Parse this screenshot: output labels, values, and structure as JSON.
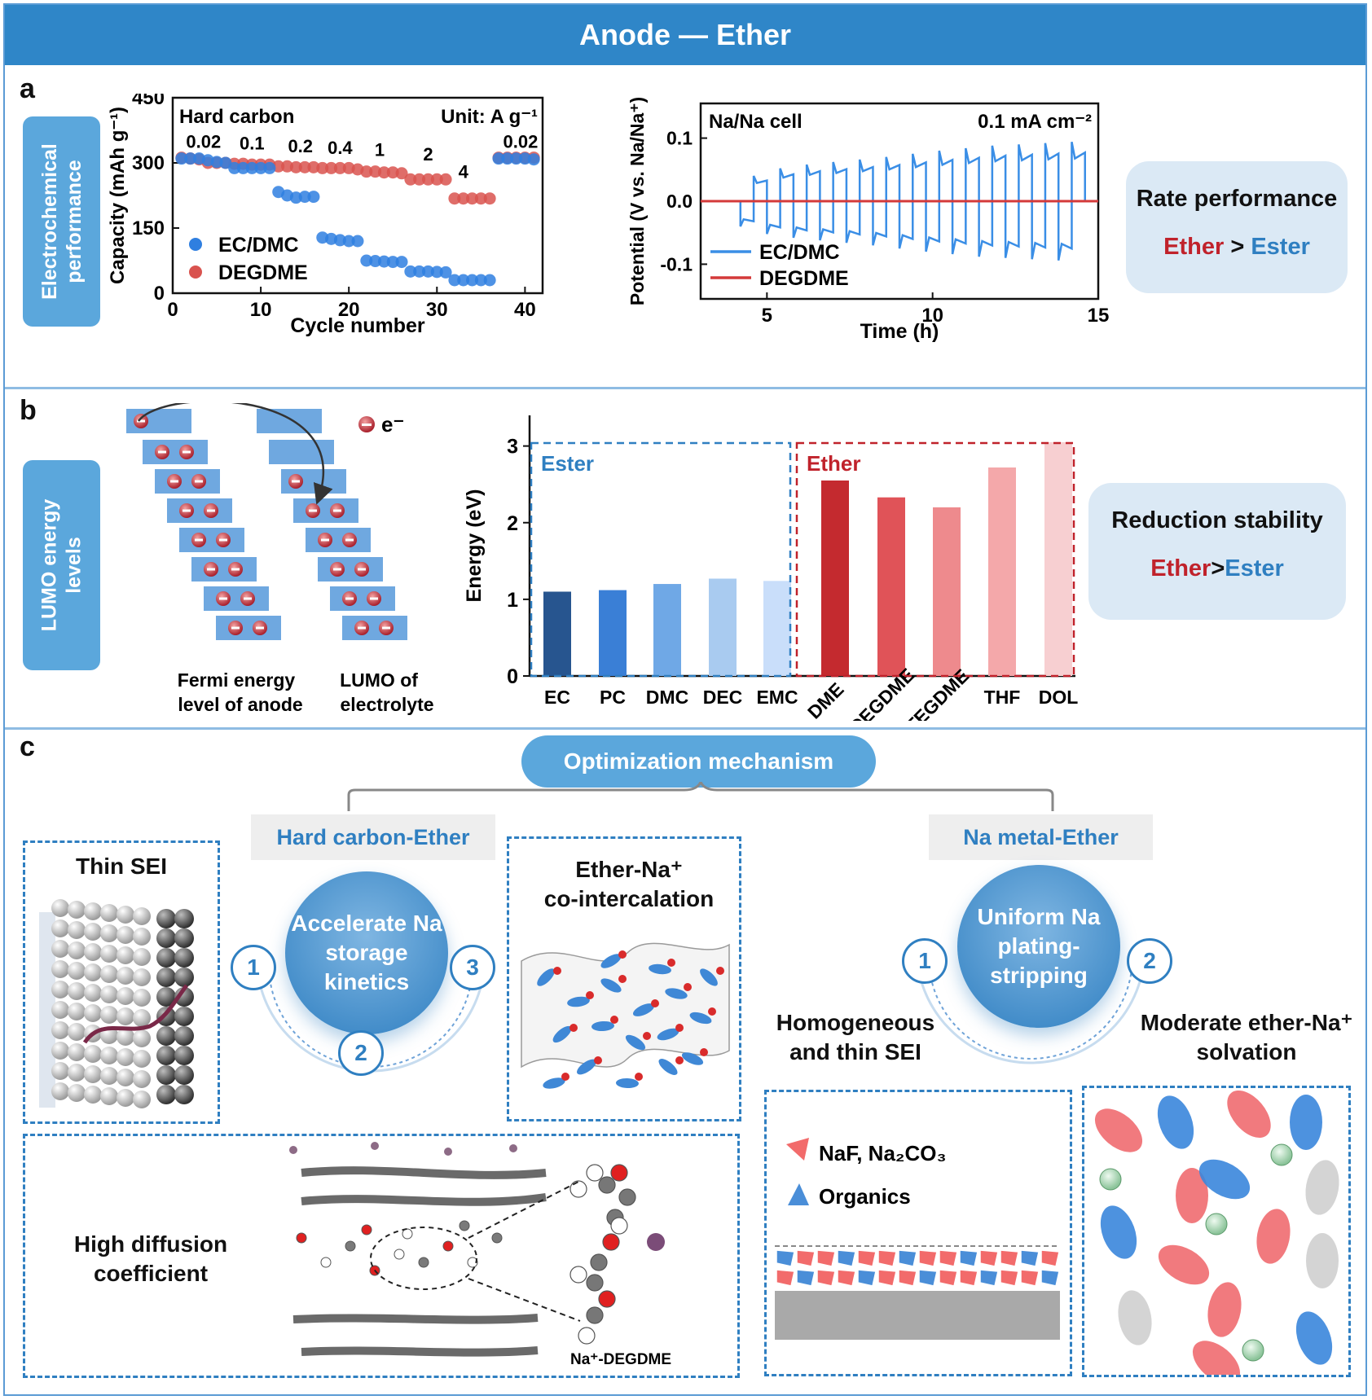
{
  "header": {
    "title": "Anode — Ether"
  },
  "panel_a": {
    "letter": "a",
    "side_label_line1": "Electrochemical",
    "side_label_line2": "performance",
    "callout": {
      "title": "Rate performance",
      "ether": "Ether",
      "gt": ">",
      "ester": "Ester"
    }
  },
  "panel_b": {
    "letter": "b",
    "side_label_line1": "LUMO energy",
    "side_label_line2": "levels",
    "legend_e": "e⁻",
    "fermi_label_1": "Fermi energy",
    "fermi_label_2": "level of anode",
    "lumo_label_1": "LUMO of",
    "lumo_label_2": "electrolyte",
    "callout": {
      "title": "Reduction stability",
      "ether": "Ether",
      "gt": ">",
      "ester": "Ester"
    }
  },
  "panel_c": {
    "letter": "c",
    "mechanism": "Optimization mechanism",
    "hc_title": "Hard carbon-Ether",
    "na_title": "Na metal-Ether",
    "thin_sei": "Thin SEI",
    "cointercalation_1": "Ether-Na⁺",
    "cointercalation_2": "co-intercalation",
    "hub_hc": "Accelerate Na storage kinetics",
    "hub_na": "Uniform Na plating-stripping",
    "numbers_hc": [
      "1",
      "2",
      "3"
    ],
    "numbers_na": [
      "1",
      "2"
    ],
    "diffusion_1": "High diffusion",
    "diffusion_2": "coefficient",
    "na_degdme": "Na⁺-DEGDME",
    "homogeneous_1": "Homogeneous",
    "homogeneous_2": "and thin SEI",
    "moderate_1": "Moderate ether-Na⁺",
    "moderate_2": "solvation",
    "sei_legend_1": "NaF, Na₂CO₃",
    "sei_legend_2": "Organics"
  },
  "chart_data": [
    {
      "type": "scatter",
      "title": "",
      "annotations": [
        "Hard carbon",
        "Unit: A g⁻¹"
      ],
      "rate_labels": [
        "0.02",
        "0.1",
        "0.2",
        "0.4",
        "1",
        "2",
        "4",
        "0.02"
      ],
      "xlabel": "Cycle number",
      "ylabel": "Capacity (mAh g⁻¹)",
      "xlim": [
        0,
        42
      ],
      "ylim": [
        0,
        450
      ],
      "xticks": [
        0,
        10,
        20,
        30,
        40
      ],
      "yticks": [
        0,
        150,
        300,
        450
      ],
      "colors": {
        "EC/DMC": "#2f7fe0",
        "DEGDME": "#d9534f"
      },
      "series": [
        {
          "name": "EC/DMC",
          "x": [
            1,
            2,
            3,
            4,
            5,
            6,
            7,
            8,
            9,
            10,
            11,
            12,
            13,
            14,
            15,
            16,
            17,
            18,
            19,
            20,
            21,
            22,
            23,
            24,
            25,
            26,
            27,
            28,
            29,
            30,
            31,
            32,
            33,
            34,
            35,
            36,
            37,
            38,
            39,
            40,
            41
          ],
          "y": [
            310,
            310,
            310,
            306,
            302,
            300,
            288,
            288,
            288,
            288,
            288,
            233,
            225,
            220,
            222,
            222,
            128,
            125,
            122,
            120,
            120,
            75,
            74,
            73,
            72,
            72,
            50,
            50,
            50,
            49,
            48,
            30,
            30,
            30,
            30,
            30,
            310,
            310,
            310,
            310,
            308
          ]
        },
        {
          "name": "DEGDME",
          "x": [
            1,
            2,
            3,
            4,
            5,
            6,
            7,
            8,
            9,
            10,
            11,
            12,
            13,
            14,
            15,
            16,
            17,
            18,
            19,
            20,
            21,
            22,
            23,
            24,
            25,
            26,
            27,
            28,
            29,
            30,
            31,
            32,
            33,
            34,
            35,
            36,
            37,
            38,
            39,
            40,
            41
          ],
          "y": [
            312,
            310,
            308,
            300,
            300,
            300,
            298,
            298,
            296,
            296,
            296,
            292,
            292,
            290,
            290,
            290,
            288,
            288,
            288,
            288,
            285,
            280,
            280,
            278,
            278,
            276,
            262,
            262,
            262,
            262,
            262,
            218,
            218,
            218,
            218,
            218,
            312,
            312,
            312,
            312,
            312
          ]
        }
      ],
      "legend": "lower-left"
    },
    {
      "type": "line",
      "title": "",
      "annotations": [
        "Na/Na cell",
        "0.1 mA cm⁻²"
      ],
      "xlabel": "Time (h)",
      "ylabel": "Potential (V vs. Na/Na⁺)",
      "xlim": [
        3,
        15
      ],
      "ylim": [
        -0.155,
        0.155
      ],
      "xticks": [
        5,
        10,
        15
      ],
      "yticks": [
        -0.1,
        0.0,
        0.1
      ],
      "series": [
        {
          "name": "EC/DMC",
          "color": "#3a8ee6",
          "segment_amplitudes": [
            0.04,
            0.052,
            0.058,
            0.062,
            0.066,
            0.07,
            0.075,
            0.08,
            0.084,
            0.088,
            0.09,
            0.092,
            0.094
          ],
          "segment_start_h": 4.2,
          "segment_period_h": 0.8
        },
        {
          "name": "DEGDME",
          "color": "#d43a3a",
          "value": 0.0
        }
      ],
      "legend": "lower-left"
    },
    {
      "type": "bar",
      "title": "",
      "ylabel": "Energy (eV)",
      "ylim": [
        0,
        3.4
      ],
      "yticks": [
        0,
        1,
        2,
        3
      ],
      "groups": [
        "Ester",
        "Ether"
      ],
      "categories": [
        "EC",
        "PC",
        "DMC",
        "DEC",
        "EMC",
        "DME",
        "DEGDME",
        "TEGDME",
        "THF",
        "DOL"
      ],
      "values": [
        1.1,
        1.12,
        1.2,
        1.27,
        1.24,
        2.55,
        2.33,
        2.2,
        2.72,
        3.05
      ],
      "colors": [
        "#27558f",
        "#3a7fd6",
        "#6fa8e6",
        "#a9cbf0",
        "#c9defa",
        "#c42a2f",
        "#e05358",
        "#ee8a8d",
        "#f4a8aa",
        "#f7cfd1"
      ]
    }
  ]
}
